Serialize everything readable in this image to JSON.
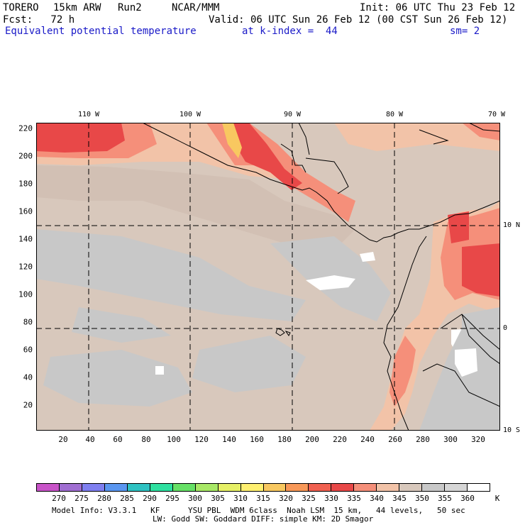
{
  "header": {
    "model": "TORERO",
    "resolution": "15km ARW",
    "run": "Run2",
    "org": "NCAR/MMM",
    "init": "Init: 06 UTC Thu 23 Feb 12",
    "fcst": "Fcst:   72 h",
    "valid": "Valid: 06 UTC Sun 26 Feb 12 (00 CST Sun 26 Feb 12)",
    "field": "Equivalent potential temperature",
    "level": "at k-index =  44",
    "smoothing": "sm= 2"
  },
  "axes": {
    "x_ticks": [
      "20",
      "40",
      "60",
      "80",
      "100",
      "120",
      "140",
      "160",
      "180",
      "200",
      "220",
      "240",
      "260",
      "280",
      "300",
      "320"
    ],
    "y_ticks": [
      "20",
      "40",
      "60",
      "80",
      "100",
      "120",
      "140",
      "160",
      "180",
      "200",
      "220"
    ],
    "lon_labels": [
      "110 W",
      "100 W",
      "90 W",
      "80 W",
      "70 W"
    ],
    "lat_labels": [
      "10 N",
      "0",
      "10 S"
    ]
  },
  "colorbar": {
    "colors": [
      "#c853c8",
      "#a06ed2",
      "#7f7ff0",
      "#5a96f0",
      "#2ec2c2",
      "#2ee0a0",
      "#66e066",
      "#a8e866",
      "#e6f066",
      "#fff070",
      "#f8c860",
      "#f89858",
      "#f06050",
      "#e84848",
      "#f58f7a",
      "#f2c3a8",
      "#d8c8bc",
      "#c8c8c8",
      "#d6d6d6",
      "#ffffff"
    ],
    "labels": [
      "270",
      "275",
      "280",
      "285",
      "290",
      "295",
      "300",
      "305",
      "310",
      "315",
      "320",
      "325",
      "330",
      "335",
      "340",
      "345",
      "350",
      "355",
      "360"
    ],
    "unit": "K"
  },
  "footer": {
    "line1": "Model Info: V3.3.1   KF      YSU PBL  WDM 6class  Noah LSM  15 km,   44 levels,   50 sec",
    "line2": "LW: Godd SW: Goddard DIFF: simple KM: 2D Smagor"
  }
}
